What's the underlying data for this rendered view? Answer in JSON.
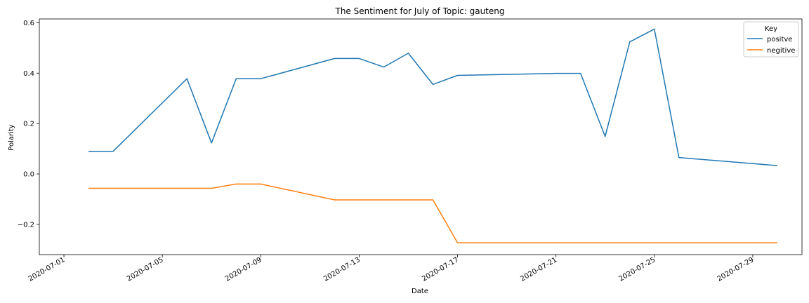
{
  "chart_data": {
    "type": "line",
    "title": "The Sentiment for July of Topic: gauteng",
    "xlabel": "Date",
    "ylabel": "Polarity",
    "x_axis_type": "date",
    "xlim": [
      "2020-06-30",
      "2020-07-31"
    ],
    "ylim": [
      -0.32,
      0.615
    ],
    "x_ticks": [
      "2020-07-01",
      "2020-07-05",
      "2020-07-09",
      "2020-07-13",
      "2020-07-17",
      "2020-07-21",
      "2020-07-25",
      "2020-07-29"
    ],
    "y_ticks": [
      -0.2,
      0.0,
      0.2,
      0.4,
      0.6
    ],
    "y_tick_labels": [
      "−0.2",
      "0.0",
      "0.2",
      "0.4",
      "0.6"
    ],
    "grid": false,
    "legend": {
      "title": "Key",
      "position": "top-right"
    },
    "series": [
      {
        "name": "positve",
        "color": "#1f77b4",
        "points": [
          {
            "x": "2020-07-02",
            "y": 0.09
          },
          {
            "x": "2020-07-03",
            "y": 0.09
          },
          {
            "x": "2020-07-06",
            "y": 0.378
          },
          {
            "x": "2020-07-07",
            "y": 0.123
          },
          {
            "x": "2020-07-08",
            "y": 0.378
          },
          {
            "x": "2020-07-09",
            "y": 0.378
          },
          {
            "x": "2020-07-12",
            "y": 0.458
          },
          {
            "x": "2020-07-13",
            "y": 0.458
          },
          {
            "x": "2020-07-14",
            "y": 0.424
          },
          {
            "x": "2020-07-15",
            "y": 0.479
          },
          {
            "x": "2020-07-16",
            "y": 0.355
          },
          {
            "x": "2020-07-17",
            "y": 0.391
          },
          {
            "x": "2020-07-21",
            "y": 0.399
          },
          {
            "x": "2020-07-22",
            "y": 0.399
          },
          {
            "x": "2020-07-23",
            "y": 0.149
          },
          {
            "x": "2020-07-24",
            "y": 0.524
          },
          {
            "x": "2020-07-25",
            "y": 0.575
          },
          {
            "x": "2020-07-26",
            "y": 0.065
          },
          {
            "x": "2020-07-30",
            "y": 0.033
          }
        ]
      },
      {
        "name": "negitive",
        "color": "#ff7f0e",
        "points": [
          {
            "x": "2020-07-02",
            "y": -0.057
          },
          {
            "x": "2020-07-07",
            "y": -0.057
          },
          {
            "x": "2020-07-08",
            "y": -0.04
          },
          {
            "x": "2020-07-09",
            "y": -0.04
          },
          {
            "x": "2020-07-12",
            "y": -0.103
          },
          {
            "x": "2020-07-16",
            "y": -0.103
          },
          {
            "x": "2020-07-17",
            "y": -0.273
          },
          {
            "x": "2020-07-30",
            "y": -0.273
          }
        ]
      }
    ]
  }
}
